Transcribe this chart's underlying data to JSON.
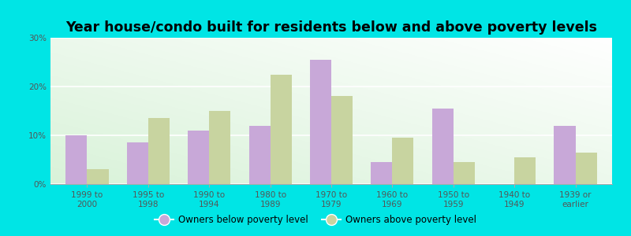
{
  "title": "Year house/condo built for residents below and above poverty levels",
  "categories": [
    "1999 to\n2000",
    "1995 to\n1998",
    "1990 to\n1994",
    "1980 to\n1989",
    "1970 to\n1979",
    "1960 to\n1969",
    "1950 to\n1959",
    "1940 to\n1949",
    "1939 or\nearly"
  ],
  "below_poverty": [
    10.0,
    8.5,
    11.0,
    12.0,
    25.5,
    4.5,
    15.5,
    0.0,
    12.0
  ],
  "above_poverty": [
    3.0,
    13.5,
    15.0,
    22.5,
    18.0,
    9.5,
    4.5,
    5.5,
    6.5
  ],
  "below_color": "#c8a8d8",
  "above_color": "#c8d4a0",
  "ylim": [
    0,
    30
  ],
  "yticks": [
    0,
    10,
    20,
    30
  ],
  "ytick_labels": [
    "0%",
    "10%",
    "20%",
    "30%"
  ],
  "outer_bg": "#00e5e5",
  "bar_width": 0.35,
  "legend_below_label": "Owners below poverty level",
  "legend_above_label": "Owners above poverty level",
  "title_fontsize": 12.5,
  "tick_fontsize": 7.5
}
